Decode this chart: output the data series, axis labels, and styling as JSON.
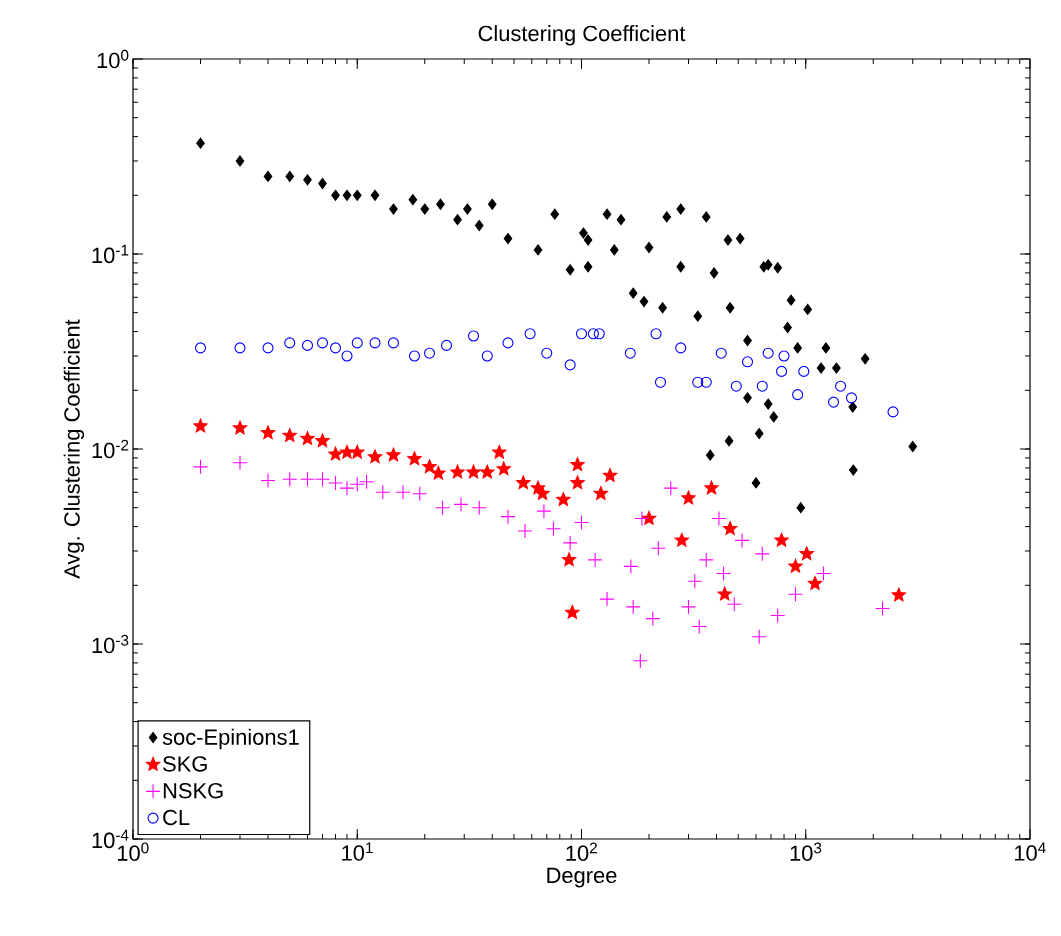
{
  "chart_data": {
    "type": "scatter",
    "title": "Clustering Coefficient",
    "xlabel": "Degree",
    "ylabel": "Avg. Clustering Coefficient",
    "log": "xy",
    "grid": false,
    "legend": "bottom left",
    "xlim": [
      1,
      10000
    ],
    "ylim": [
      0.0001,
      1
    ],
    "xticks": [
      {
        "value": 1,
        "label": "10$^{0}$"
      },
      {
        "value": 10,
        "label": "10$^{1}$"
      },
      {
        "value": 100,
        "label": "10$^{2}$"
      },
      {
        "value": 1000,
        "label": "10$^{3}$"
      },
      {
        "value": 10000,
        "label": "10$^{4}$"
      }
    ],
    "yticks": [
      {
        "value": 0.0001,
        "label": "10$^{-4}$"
      },
      {
        "value": 0.001,
        "label": "10$^{-3}$"
      },
      {
        "value": 0.01,
        "label": "10$^{-2}$"
      },
      {
        "value": 0.1,
        "label": "10$^{-1}$"
      },
      {
        "value": 1,
        "label": "10$^{0}$"
      }
    ],
    "series": [
      {
        "name": "soc-Epinions1",
        "color": "#000000",
        "marker": "diamond",
        "x": [
          2,
          3,
          4,
          5,
          6,
          7,
          8,
          9,
          10,
          12,
          14.5,
          17.7,
          20,
          23.5,
          28,
          31,
          35,
          40,
          47,
          64,
          76,
          89,
          102,
          107,
          107,
          130,
          140,
          150,
          170,
          190,
          200,
          230,
          240,
          277,
          277,
          330,
          360,
          390,
          450,
          460,
          510,
          550,
          650,
          680,
          750,
          830,
          860,
          920,
          1020,
          1170,
          1230,
          1370,
          1840,
          550,
          680,
          720,
          620,
          455,
          375,
          600,
          950,
          1630,
          3000,
          1620
        ],
        "values": [
          0.37,
          0.3,
          0.25,
          0.25,
          0.24,
          0.23,
          0.2,
          0.2,
          0.2,
          0.2,
          0.17,
          0.19,
          0.17,
          0.18,
          0.15,
          0.17,
          0.14,
          0.18,
          0.12,
          0.105,
          0.16,
          0.083,
          0.128,
          0.086,
          0.118,
          0.16,
          0.105,
          0.15,
          0.063,
          0.057,
          0.108,
          0.053,
          0.155,
          0.17,
          0.086,
          0.048,
          0.155,
          0.08,
          0.118,
          0.053,
          0.12,
          0.036,
          0.086,
          0.088,
          0.085,
          0.042,
          0.058,
          0.033,
          0.052,
          0.026,
          0.033,
          0.026,
          0.029,
          0.0183,
          0.017,
          0.0146,
          0.012,
          0.011,
          0.0093,
          0.0067,
          0.005,
          0.0078,
          0.0103,
          0.0164
        ]
      },
      {
        "name": "SKG",
        "color": "#ff0000",
        "marker": "star",
        "x": [
          2,
          3,
          4,
          5,
          6,
          7,
          8,
          9,
          10,
          12,
          14.5,
          18,
          21,
          23,
          28,
          33,
          38,
          43,
          45,
          55,
          64,
          67,
          83,
          88,
          91,
          96,
          96,
          122,
          134,
          200,
          280,
          300,
          380,
          435,
          460,
          780,
          900,
          1010,
          1100,
          2600
        ],
        "values": [
          0.0131,
          0.0128,
          0.0121,
          0.0117,
          0.0113,
          0.011,
          0.0094,
          0.0096,
          0.0096,
          0.0091,
          0.0093,
          0.0089,
          0.0081,
          0.0075,
          0.0076,
          0.0076,
          0.0076,
          0.0096,
          0.0079,
          0.0067,
          0.0063,
          0.0059,
          0.0055,
          0.0027,
          0.00145,
          0.0083,
          0.0067,
          0.0059,
          0.0073,
          0.0044,
          0.0034,
          0.0056,
          0.0063,
          0.0018,
          0.0039,
          0.0034,
          0.0025,
          0.0029,
          0.00204,
          0.00178
        ]
      },
      {
        "name": "NSKG",
        "color": "#ff00ff",
        "marker": "cross",
        "x": [
          2,
          3,
          4,
          5,
          6,
          7,
          8,
          9,
          10,
          11,
          13,
          16,
          19,
          24,
          29,
          35,
          47,
          56,
          68,
          75,
          89,
          100,
          115,
          130,
          166,
          170,
          183,
          186,
          208,
          220,
          250,
          300,
          320,
          335,
          360,
          410,
          430,
          480,
          520,
          620,
          640,
          750,
          900,
          1200,
          2200
        ],
        "values": [
          0.0081,
          0.0085,
          0.0069,
          0.007,
          0.007,
          0.007,
          0.0067,
          0.0063,
          0.0066,
          0.0068,
          0.006,
          0.006,
          0.0059,
          0.005,
          0.0052,
          0.005,
          0.0045,
          0.0038,
          0.0048,
          0.0039,
          0.0033,
          0.0042,
          0.0027,
          0.0017,
          0.0025,
          0.00155,
          0.00082,
          0.0044,
          0.00135,
          0.0031,
          0.0063,
          0.00155,
          0.0021,
          0.00123,
          0.0027,
          0.0044,
          0.0023,
          0.0016,
          0.0034,
          0.00109,
          0.0029,
          0.0014,
          0.0018,
          0.0023,
          0.00152
        ]
      },
      {
        "name": "CL",
        "color": "#0000ff",
        "marker": "circle",
        "x": [
          2,
          3,
          4,
          5,
          6,
          7,
          8,
          9,
          10,
          12,
          14.5,
          18,
          21,
          25,
          33,
          38,
          47,
          59,
          70,
          89,
          100,
          113,
          120,
          165,
          215,
          225,
          277,
          330,
          360,
          420,
          490,
          550,
          640,
          680,
          780,
          800,
          920,
          980,
          1330,
          1430,
          1600,
          2450
        ],
        "values": [
          0.033,
          0.033,
          0.033,
          0.035,
          0.034,
          0.035,
          0.033,
          0.03,
          0.035,
          0.035,
          0.035,
          0.03,
          0.031,
          0.034,
          0.038,
          0.03,
          0.035,
          0.039,
          0.031,
          0.027,
          0.039,
          0.039,
          0.039,
          0.031,
          0.039,
          0.022,
          0.033,
          0.022,
          0.022,
          0.031,
          0.021,
          0.028,
          0.021,
          0.031,
          0.025,
          0.03,
          0.019,
          0.025,
          0.0174,
          0.021,
          0.0183,
          0.0155
        ]
      }
    ]
  }
}
